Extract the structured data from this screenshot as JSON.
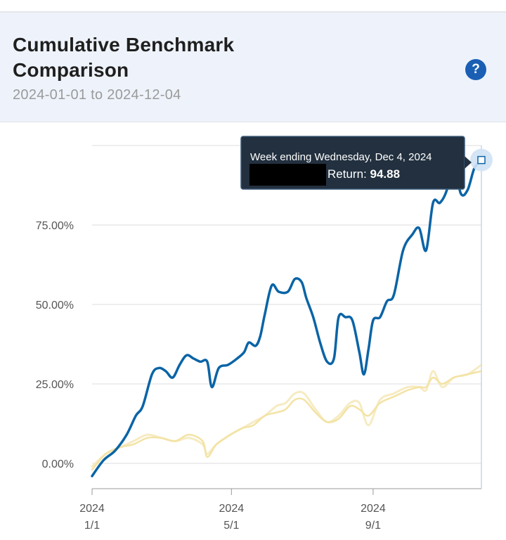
{
  "header": {
    "title": "Cumulative Benchmark Comparison",
    "date_range": "2024-01-01 to 2024-12-04",
    "help_icon": "question-circle-icon"
  },
  "tooltip": {
    "title": "Week ending Wednesday, Dec 4, 2024",
    "return_label": "Return: ",
    "return_value": "94.88"
  },
  "colors": {
    "primary_series": "#0a64a6",
    "benchmark_series_a": "#f3e3a4",
    "benchmark_series_b": "#f6ebc2",
    "grid": "#dcdcdc",
    "tooltip_bg": "#22303f"
  },
  "chart_data": {
    "type": "line",
    "title": "Cumulative Benchmark Comparison",
    "xlabel": "",
    "ylabel": "",
    "ylim": [
      -8,
      98
    ],
    "grid": true,
    "y_ticks": [
      0,
      25,
      50,
      75
    ],
    "y_tick_labels": [
      "0.00%",
      "25.00%",
      "50.00%",
      "75.00%"
    ],
    "x_ticks": [
      {
        "label_year": "2024",
        "label_date": "1/1",
        "day": 0
      },
      {
        "label_year": "2024",
        "label_date": "5/1",
        "day": 121
      },
      {
        "label_year": "2024",
        "label_date": "9/1",
        "day": 244
      }
    ],
    "xlim_days": [
      0,
      338
    ],
    "series": [
      {
        "role": "primary",
        "points": [
          [
            0,
            -4
          ],
          [
            10,
            1
          ],
          [
            20,
            4
          ],
          [
            30,
            9
          ],
          [
            38,
            15
          ],
          [
            44,
            18
          ],
          [
            52,
            28
          ],
          [
            58,
            30
          ],
          [
            64,
            29
          ],
          [
            70,
            27
          ],
          [
            76,
            31
          ],
          [
            82,
            34
          ],
          [
            88,
            33
          ],
          [
            94,
            32
          ],
          [
            100,
            32
          ],
          [
            104,
            24
          ],
          [
            110,
            30
          ],
          [
            118,
            31
          ],
          [
            126,
            33
          ],
          [
            132,
            35
          ],
          [
            136,
            38
          ],
          [
            142,
            37
          ],
          [
            146,
            40
          ],
          [
            150,
            47
          ],
          [
            156,
            56
          ],
          [
            162,
            54
          ],
          [
            170,
            54
          ],
          [
            176,
            58
          ],
          [
            182,
            57
          ],
          [
            186,
            52
          ],
          [
            192,
            46
          ],
          [
            198,
            38
          ],
          [
            204,
            32
          ],
          [
            210,
            33
          ],
          [
            214,
            46
          ],
          [
            220,
            46
          ],
          [
            226,
            45
          ],
          [
            232,
            35
          ],
          [
            236,
            28
          ],
          [
            240,
            36
          ],
          [
            244,
            45
          ],
          [
            250,
            46
          ],
          [
            256,
            51
          ],
          [
            262,
            53
          ],
          [
            270,
            67
          ],
          [
            278,
            72
          ],
          [
            284,
            74
          ],
          [
            290,
            67
          ],
          [
            296,
            82
          ],
          [
            302,
            82
          ],
          [
            308,
            86
          ],
          [
            314,
            95
          ],
          [
            320,
            85
          ],
          [
            326,
            86
          ],
          [
            332,
            93
          ],
          [
            338,
            95
          ]
        ]
      },
      {
        "role": "benchmark-a",
        "points": [
          [
            0,
            -2
          ],
          [
            12,
            3
          ],
          [
            24,
            5
          ],
          [
            36,
            6
          ],
          [
            48,
            8
          ],
          [
            60,
            8
          ],
          [
            72,
            7
          ],
          [
            84,
            9
          ],
          [
            96,
            7
          ],
          [
            100,
            2
          ],
          [
            108,
            6
          ],
          [
            120,
            9
          ],
          [
            130,
            11
          ],
          [
            140,
            12
          ],
          [
            150,
            15
          ],
          [
            160,
            16
          ],
          [
            168,
            17
          ],
          [
            176,
            20
          ],
          [
            184,
            20
          ],
          [
            194,
            16
          ],
          [
            204,
            13
          ],
          [
            214,
            14
          ],
          [
            224,
            18
          ],
          [
            232,
            17
          ],
          [
            240,
            15
          ],
          [
            250,
            19
          ],
          [
            262,
            21
          ],
          [
            274,
            23
          ],
          [
            284,
            24
          ],
          [
            290,
            24
          ],
          [
            296,
            27
          ],
          [
            304,
            25
          ],
          [
            314,
            27
          ],
          [
            326,
            28
          ],
          [
            338,
            29
          ]
        ]
      },
      {
        "role": "benchmark-b",
        "points": [
          [
            0,
            -1
          ],
          [
            12,
            3
          ],
          [
            24,
            5
          ],
          [
            36,
            7
          ],
          [
            48,
            9
          ],
          [
            60,
            8
          ],
          [
            72,
            7
          ],
          [
            84,
            8
          ],
          [
            96,
            6
          ],
          [
            100,
            3
          ],
          [
            108,
            6
          ],
          [
            120,
            9
          ],
          [
            130,
            11
          ],
          [
            140,
            13
          ],
          [
            150,
            15
          ],
          [
            160,
            18
          ],
          [
            168,
            19
          ],
          [
            176,
            22
          ],
          [
            184,
            22
          ],
          [
            194,
            17
          ],
          [
            204,
            13
          ],
          [
            214,
            15
          ],
          [
            224,
            19
          ],
          [
            232,
            19
          ],
          [
            240,
            12
          ],
          [
            250,
            20
          ],
          [
            262,
            22
          ],
          [
            274,
            24
          ],
          [
            284,
            24
          ],
          [
            290,
            23
          ],
          [
            296,
            29
          ],
          [
            304,
            24
          ],
          [
            314,
            27
          ],
          [
            326,
            28
          ],
          [
            338,
            31
          ]
        ]
      }
    ]
  }
}
